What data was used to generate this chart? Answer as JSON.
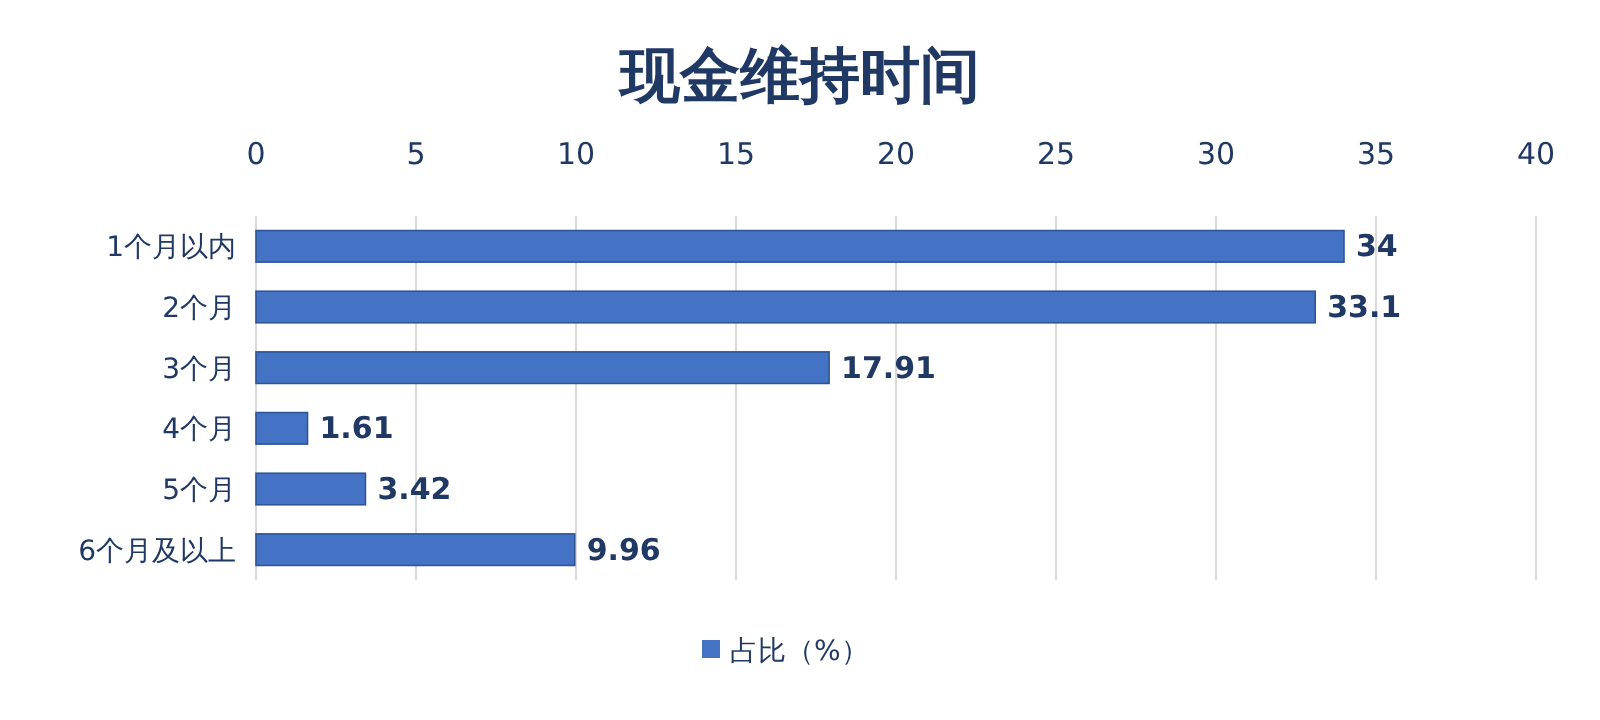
{
  "chart_data": {
    "type": "bar",
    "orientation": "horizontal",
    "title": "现金维持时间",
    "categories": [
      "1个月以内",
      "2个月",
      "3个月",
      "4个月",
      "5个月",
      "6个月及以上"
    ],
    "series": [
      {
        "name": "占比（%）",
        "color": "#4472c4",
        "values": [
          34,
          33.1,
          17.91,
          1.61,
          3.42,
          9.96
        ]
      }
    ],
    "xlim": [
      0,
      40
    ],
    "xticks": [
      0,
      5,
      10,
      15,
      20,
      25,
      30,
      35,
      40
    ],
    "grid": "x",
    "data_labels": true,
    "legend": "bottom"
  }
}
